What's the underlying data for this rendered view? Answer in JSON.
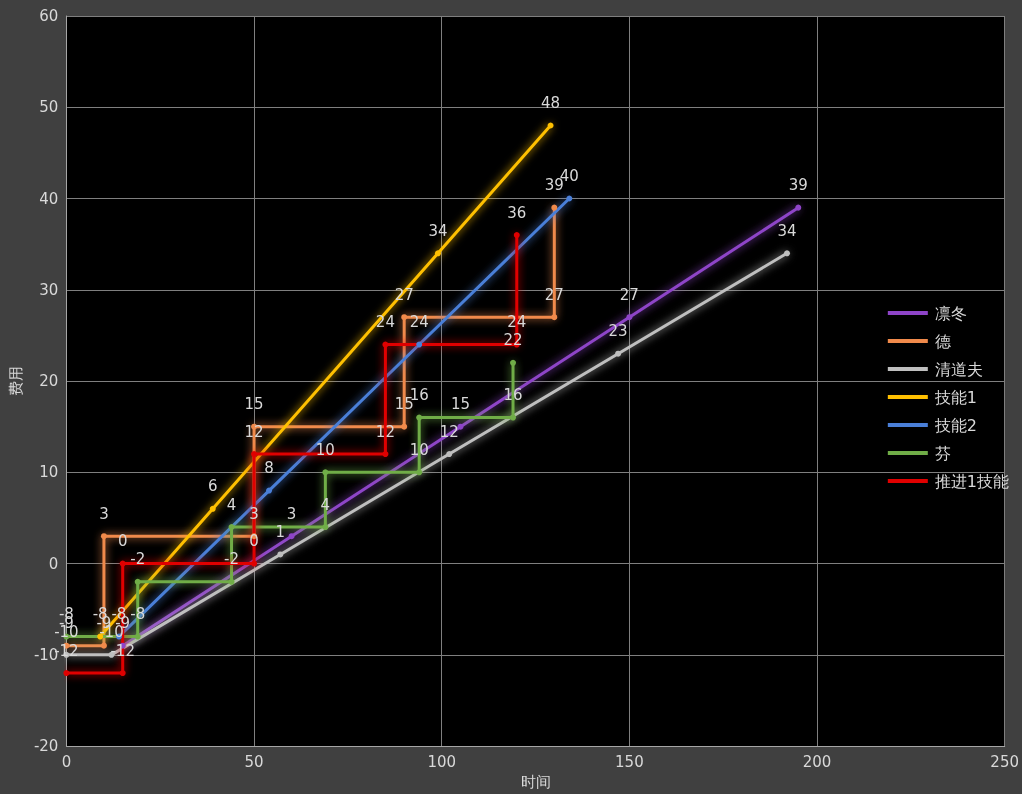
{
  "chart_data": {
    "type": "line",
    "xlabel": "时间",
    "ylabel": "费用",
    "xlim": [
      0,
      250
    ],
    "xticks": [
      0,
      50,
      100,
      150,
      200,
      250
    ],
    "ylim": [
      -20,
      60
    ],
    "yticks": [
      -20,
      -10,
      0,
      10,
      20,
      30,
      40,
      50,
      60
    ],
    "grid": true,
    "legend": "right",
    "marker": "circle",
    "line_style": "solid",
    "data_labels": true,
    "series": [
      {
        "name": "凛冬",
        "color": "#8e44c8",
        "x": [
          15,
          60,
          105,
          150,
          195
        ],
        "values": [
          -9,
          3,
          15,
          27,
          39
        ]
      },
      {
        "name": "德",
        "color": "#f08a4b",
        "x": [
          0,
          10,
          10,
          50,
          50,
          90,
          90,
          130,
          130
        ],
        "values": [
          -9,
          -9,
          3,
          3,
          15,
          15,
          27,
          27,
          39
        ]
      },
      {
        "name": "清道夫",
        "color": "#bfbfbf",
        "x": [
          0,
          12,
          57,
          102,
          147,
          192
        ],
        "values": [
          -10,
          -10,
          1,
          12,
          23,
          34
        ]
      },
      {
        "name": "技能1",
        "color": "#ffc000",
        "x": [
          9,
          39,
          99,
          129
        ],
        "values": [
          -8,
          6,
          34,
          48
        ]
      },
      {
        "name": "技能2",
        "color": "#4a7fd8",
        "x": [
          14,
          54,
          94,
          134
        ],
        "values": [
          -8,
          8,
          24,
          40
        ]
      },
      {
        "name": "芬",
        "color": "#70ad47",
        "x": [
          0,
          19,
          19,
          44,
          44,
          69,
          69,
          94,
          94,
          119,
          119
        ],
        "values": [
          -8,
          -8,
          -2,
          -2,
          4,
          4,
          10,
          10,
          16,
          16,
          22
        ]
      },
      {
        "name": "推进1技能",
        "color": "#e00000",
        "x": [
          0,
          15,
          15,
          50,
          50,
          85,
          85,
          120,
          120
        ],
        "values": [
          -12,
          -12,
          0,
          0,
          12,
          12,
          24,
          24,
          36
        ]
      }
    ]
  }
}
